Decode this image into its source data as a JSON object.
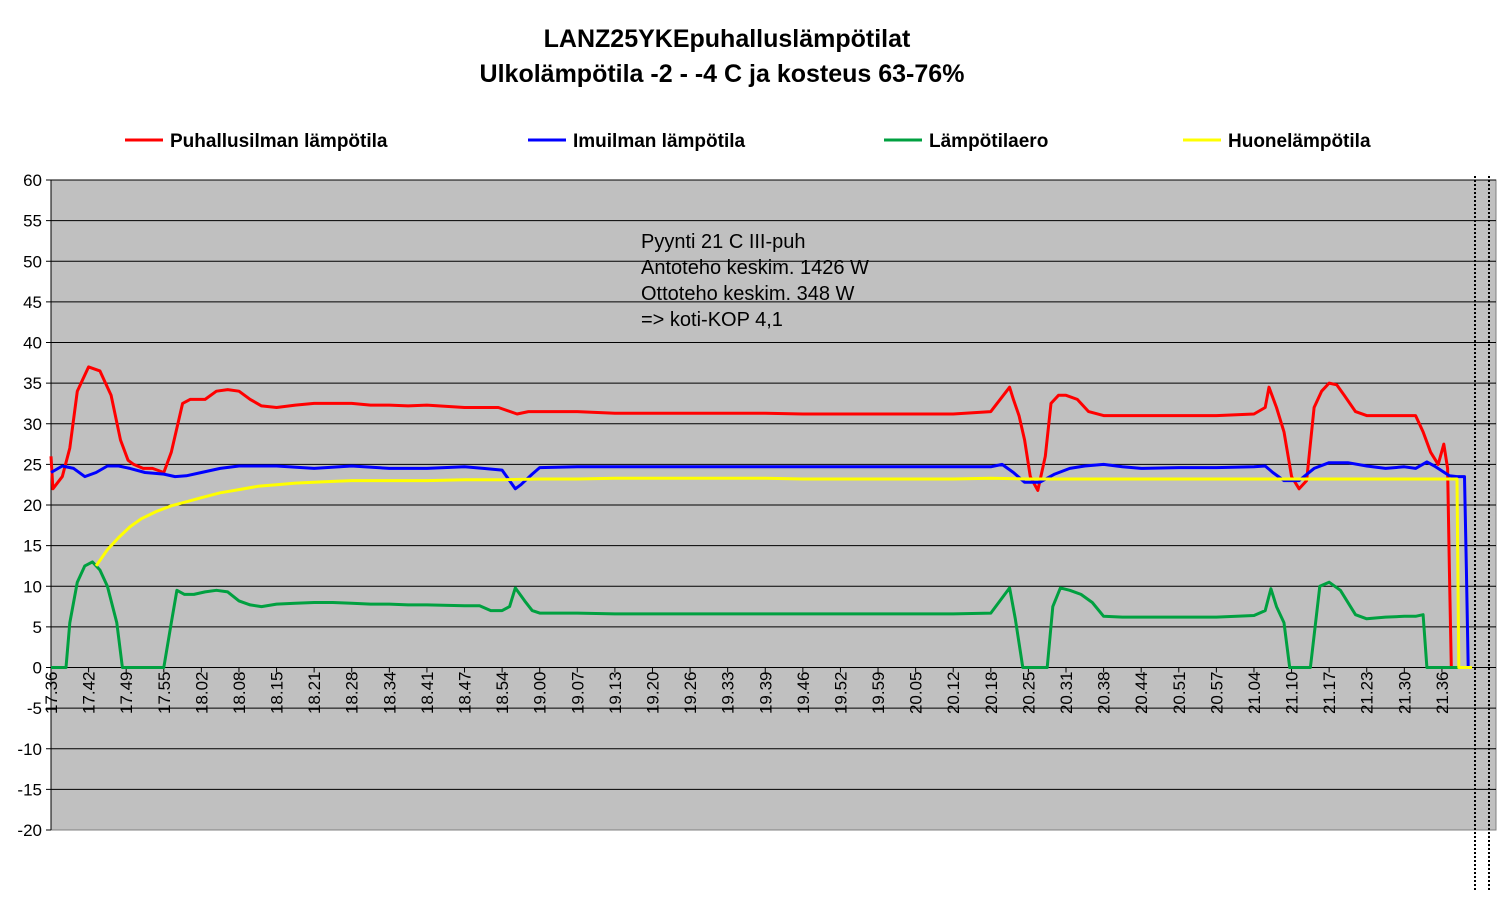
{
  "chart_data": {
    "type": "line",
    "title": "LANZ25YKEpuhalluslämpötilat",
    "subtitle": "Ulkolämpötila -2 - -4 C ja kosteus 63-76%",
    "ylim": [
      -20,
      60
    ],
    "yticks": [
      60,
      55,
      50,
      45,
      40,
      35,
      30,
      25,
      20,
      15,
      10,
      5,
      0,
      -5,
      -10,
      -15,
      -20
    ],
    "x_labels": [
      "17.36",
      "17.42",
      "17.49",
      "17.55",
      "18.02",
      "18.08",
      "18.15",
      "18.21",
      "18.28",
      "18.34",
      "18.41",
      "18.47",
      "18.54",
      "19.00",
      "19.07",
      "19.13",
      "19.20",
      "19.26",
      "19.33",
      "19.39",
      "19.46",
      "19.52",
      "19.59",
      "20.05",
      "20.12",
      "20.18",
      "20.25",
      "20.31",
      "20.38",
      "20.44",
      "20.51",
      "20.57",
      "21.04",
      "21.10",
      "21.17",
      "21.23",
      "21.30",
      "21.36"
    ],
    "xlim": [
      0,
      37.8
    ],
    "grid": true,
    "legend_position": "top",
    "annotation": [
      "Pyynti 21 C III-puh",
      "Antoteho keskim. 1426 W",
      "Ottoteho keskim. 348 W",
      "=> koti-KOP 4,1"
    ],
    "series": [
      {
        "name": "Puhallusilman lämpötila",
        "color": "#ff0000",
        "x": [
          0,
          0.05,
          0.3,
          0.5,
          0.7,
          1.0,
          1.3,
          1.6,
          1.85,
          2.05,
          2.2,
          2.45,
          2.7,
          3.0,
          3.2,
          3.5,
          3.7,
          3.9,
          4.1,
          4.4,
          4.7,
          5.0,
          5.3,
          5.6,
          6.0,
          6.5,
          7.0,
          7.5,
          8.0,
          8.5,
          9.0,
          9.5,
          10.0,
          11.0,
          11.5,
          11.9,
          12.4,
          12.7,
          13.0,
          14.0,
          15.0,
          16.0,
          17.0,
          18.0,
          19.0,
          20.0,
          21.0,
          22.0,
          23.0,
          24.0,
          25.0,
          25.5,
          25.6,
          25.75,
          25.9,
          26.05,
          26.25,
          26.45,
          26.6,
          26.8,
          27.0,
          27.3,
          27.6,
          28.0,
          28.5,
          29.0,
          30.0,
          31.0,
          32.0,
          32.3,
          32.4,
          32.6,
          32.8,
          33.0,
          33.2,
          33.4,
          33.6,
          33.8,
          34.0,
          34.2,
          34.4,
          34.7,
          35.0,
          35.5,
          36.0,
          36.3,
          36.5,
          36.7,
          36.9,
          37.05,
          37.15,
          37.2,
          37.25
        ],
        "y": [
          26,
          22,
          23.5,
          27,
          34,
          37,
          36.5,
          33.5,
          28,
          25.5,
          25,
          24.5,
          24.5,
          24,
          26.5,
          32.5,
          33,
          33,
          33,
          34,
          34.2,
          34,
          33,
          32.2,
          32,
          32.3,
          32.5,
          32.5,
          32.5,
          32.3,
          32.3,
          32.2,
          32.3,
          32,
          32,
          32,
          31.2,
          31.5,
          31.5,
          31.5,
          31.3,
          31.3,
          31.3,
          31.3,
          31.3,
          31.2,
          31.2,
          31.2,
          31.2,
          31.2,
          31.5,
          34.5,
          33,
          31,
          28,
          23.5,
          21.8,
          26,
          32.5,
          33.5,
          33.5,
          33,
          31.5,
          31,
          31,
          31,
          31,
          31,
          31.2,
          32,
          34.5,
          32,
          29,
          23.5,
          22,
          23,
          32,
          34,
          35,
          34.8,
          33.5,
          31.5,
          31,
          31,
          31,
          31,
          29,
          26.5,
          25,
          27.5,
          24.5,
          12,
          0
        ]
      },
      {
        "name": "Imuilman lämpötila",
        "color": "#0000ff",
        "x": [
          0,
          0.3,
          0.6,
          0.9,
          1.2,
          1.5,
          1.8,
          2.1,
          2.5,
          3.0,
          3.3,
          3.6,
          4.0,
          4.5,
          5.0,
          6.0,
          7.0,
          8.0,
          9.0,
          10.0,
          11.0,
          11.5,
          12.0,
          12.35,
          12.5,
          12.8,
          13.0,
          14.0,
          15.0,
          16.0,
          17.0,
          18.0,
          19.0,
          20.0,
          21.0,
          22.0,
          23.0,
          24.0,
          25.0,
          25.3,
          25.6,
          25.9,
          26.3,
          26.7,
          27.1,
          27.5,
          28.0,
          28.5,
          29.0,
          30.0,
          31.0,
          32.0,
          32.3,
          32.5,
          32.8,
          33.2,
          33.6,
          34.0,
          34.5,
          35.0,
          35.5,
          36.0,
          36.3,
          36.6,
          36.8,
          37.0,
          37.2,
          37.4,
          37.6,
          37.65,
          37.7
        ],
        "y": [
          24,
          24.8,
          24.5,
          23.5,
          24,
          24.8,
          24.8,
          24.5,
          24,
          23.8,
          23.5,
          23.6,
          24,
          24.5,
          24.8,
          24.8,
          24.5,
          24.8,
          24.5,
          24.5,
          24.7,
          24.5,
          24.3,
          22,
          22.5,
          23.8,
          24.6,
          24.7,
          24.7,
          24.7,
          24.7,
          24.7,
          24.7,
          24.7,
          24.7,
          24.7,
          24.7,
          24.7,
          24.7,
          25,
          24,
          22.8,
          22.8,
          23.8,
          24.5,
          24.8,
          25,
          24.7,
          24.5,
          24.6,
          24.6,
          24.7,
          24.8,
          24,
          23,
          23,
          24.5,
          25.2,
          25.2,
          24.8,
          24.5,
          24.7,
          24.5,
          25.3,
          24.8,
          24.2,
          23.6,
          23.5,
          23.5,
          12,
          0
        ]
      },
      {
        "name": "Lämpötilaero",
        "color": "#00a040",
        "x": [
          0,
          0.4,
          0.5,
          0.7,
          0.9,
          1.1,
          1.3,
          1.5,
          1.75,
          1.9,
          2.1,
          3.0,
          3.2,
          3.35,
          3.55,
          3.8,
          4.1,
          4.4,
          4.7,
          5.0,
          5.3,
          5.6,
          6.0,
          6.5,
          7.0,
          7.5,
          8.0,
          8.5,
          9.0,
          9.5,
          10.0,
          11.0,
          11.4,
          11.7,
          12.0,
          12.2,
          12.35,
          12.6,
          12.8,
          13.0,
          14.0,
          15.0,
          16.0,
          17.0,
          18.0,
          19.0,
          20.0,
          21.0,
          22.0,
          23.0,
          24.0,
          25.0,
          25.5,
          25.65,
          25.85,
          26.2,
          26.5,
          26.65,
          26.85,
          27.1,
          27.4,
          27.7,
          28.0,
          28.5,
          29.0,
          30.0,
          31.0,
          32.0,
          32.3,
          32.45,
          32.6,
          32.8,
          32.95,
          33.5,
          33.75,
          34.0,
          34.3,
          34.7,
          35.0,
          35.5,
          36.0,
          36.3,
          36.5,
          36.6,
          37.0,
          37.5,
          37.8
        ],
        "y": [
          0,
          0,
          5.5,
          10.5,
          12.5,
          13,
          12,
          10,
          5.5,
          0,
          0,
          0,
          5.5,
          9.5,
          9,
          9,
          9.3,
          9.5,
          9.3,
          8.2,
          7.7,
          7.5,
          7.8,
          7.9,
          8,
          8,
          7.9,
          7.8,
          7.8,
          7.7,
          7.7,
          7.6,
          7.6,
          7,
          7,
          7.5,
          9.8,
          8.2,
          7,
          6.7,
          6.7,
          6.6,
          6.6,
          6.6,
          6.6,
          6.6,
          6.6,
          6.6,
          6.6,
          6.6,
          6.6,
          6.7,
          9.8,
          6,
          0,
          0,
          0,
          7.5,
          9.8,
          9.5,
          9,
          8,
          6.3,
          6.2,
          6.2,
          6.2,
          6.2,
          6.4,
          7,
          9.7,
          7.5,
          5.5,
          0,
          0,
          10,
          10.5,
          9.5,
          6.5,
          6,
          6.2,
          6.3,
          6.3,
          6.5,
          0,
          0,
          0,
          0
        ]
      },
      {
        "name": "Huonelämpötila",
        "color": "#ffff00",
        "x": [
          1.2,
          1.5,
          1.8,
          2.1,
          2.4,
          2.8,
          3.2,
          3.6,
          4.0,
          4.5,
          5.0,
          5.5,
          6.0,
          6.5,
          7.0,
          7.5,
          8.0,
          9.0,
          10.0,
          11.0,
          12.0,
          13.0,
          14.0,
          15.0,
          16.0,
          17.0,
          18.0,
          19.0,
          20.0,
          21.0,
          22.0,
          23.0,
          24.0,
          25.0,
          26.0,
          27.0,
          28.0,
          29.0,
          30.0,
          31.0,
          32.0,
          33.0,
          34.0,
          35.0,
          36.0,
          37.0,
          37.4,
          37.45,
          37.8
        ],
        "y": [
          12.5,
          14.5,
          16,
          17.3,
          18.3,
          19.2,
          19.9,
          20.4,
          20.9,
          21.5,
          21.9,
          22.3,
          22.5,
          22.7,
          22.8,
          22.9,
          23,
          23,
          23,
          23.1,
          23.1,
          23.2,
          23.2,
          23.3,
          23.3,
          23.3,
          23.3,
          23.3,
          23.2,
          23.2,
          23.2,
          23.2,
          23.2,
          23.3,
          23.2,
          23.2,
          23.2,
          23.2,
          23.2,
          23.2,
          23.2,
          23.2,
          23.2,
          23.2,
          23.2,
          23.2,
          23.2,
          0,
          0
        ]
      }
    ]
  }
}
